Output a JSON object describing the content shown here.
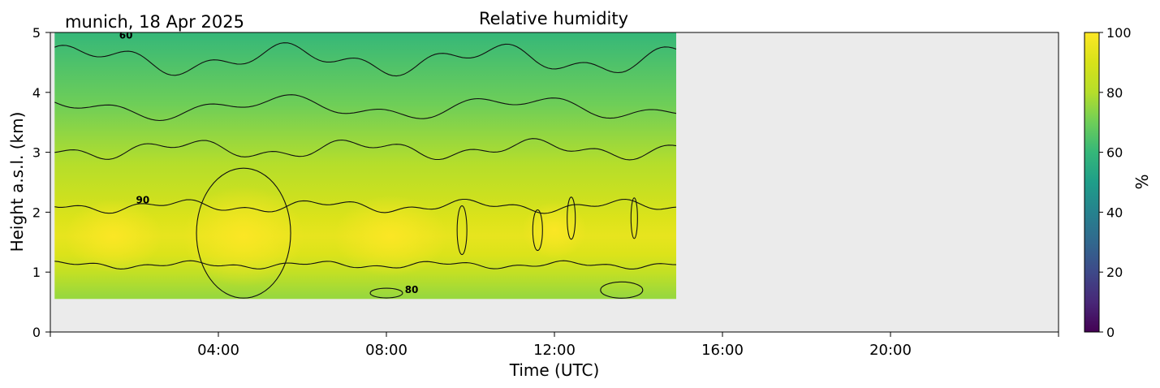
{
  "location_date": "munich, 18 Apr 2025",
  "chart_data": {
    "type": "heatmap",
    "title": "Relative humidity",
    "xlabel": "Time (UTC)",
    "ylabel": "Height a.s.l. (km)",
    "colorbar_label": "%",
    "colormap": "viridis",
    "xlim_hours": [
      0,
      24
    ],
    "ylim": [
      0,
      5
    ],
    "x_ticks": [
      "04:00",
      "08:00",
      "12:00",
      "16:00",
      "20:00"
    ],
    "y_ticks": [
      "0",
      "1",
      "2",
      "3",
      "4",
      "5"
    ],
    "colorbar_ticks": [
      "0",
      "20",
      "40",
      "60",
      "80",
      "100"
    ],
    "colorbar_range": [
      0,
      100
    ],
    "data_extent": {
      "time_start_h": 0.1,
      "time_end_h": 14.9,
      "height_min_km": 0.55,
      "height_max_km": 5.0
    },
    "background_color": "#ebebeb",
    "contour_levels": [
      60,
      70,
      80,
      90
    ],
    "contour_labels": [
      {
        "text": "90",
        "time_h": 2.2,
        "height_km": 2.15
      },
      {
        "text": "80",
        "time_h": 8.6,
        "height_km": 0.65
      },
      {
        "text": "60",
        "time_h": 1.8,
        "height_km": 4.9
      }
    ],
    "humidity_profile": [
      {
        "height_km": 0.6,
        "rh": 76
      },
      {
        "height_km": 1.0,
        "rh": 84
      },
      {
        "height_km": 1.3,
        "rh": 91
      },
      {
        "height_km": 1.6,
        "rh": 94
      },
      {
        "height_km": 1.9,
        "rh": 91
      },
      {
        "height_km": 2.3,
        "rh": 86
      },
      {
        "height_km": 2.8,
        "rh": 80
      },
      {
        "height_km": 3.3,
        "rh": 75
      },
      {
        "height_km": 3.8,
        "rh": 70
      },
      {
        "height_km": 4.4,
        "rh": 65
      },
      {
        "height_km": 5.0,
        "rh": 60
      }
    ]
  }
}
